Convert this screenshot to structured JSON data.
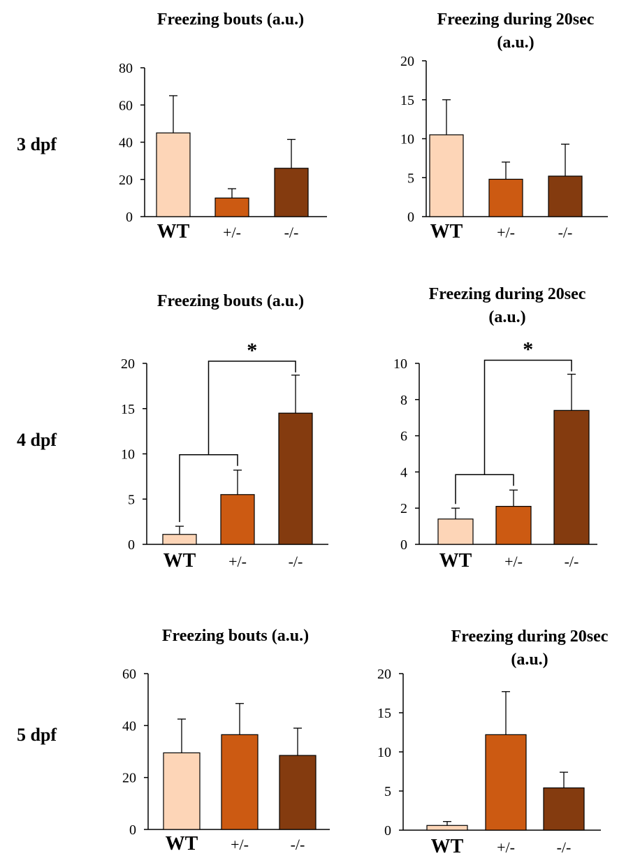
{
  "rows": [
    {
      "label": "3 dpf"
    },
    {
      "label": "4 dpf"
    },
    {
      "label": "5 dpf"
    }
  ],
  "colors": {
    "WT": "#FDD5B7",
    "het": "#CC5A12",
    "ko": "#843B0F",
    "axis": "#000000"
  },
  "chart_data": [
    {
      "type": "bar",
      "row": "3 dpf",
      "title_lines": [
        "Freezing bouts (a.u.)"
      ],
      "categories": [
        "WT",
        "+/-",
        "-/-"
      ],
      "values": [
        45,
        10,
        26
      ],
      "errors": [
        20,
        5,
        15.5
      ],
      "ylim": [
        0,
        80
      ],
      "yticks": [
        "0",
        "20",
        "40",
        "60",
        "80"
      ],
      "significance": []
    },
    {
      "type": "bar",
      "row": "3 dpf",
      "title_lines": [
        "Freezing during 20sec",
        "(a.u.)"
      ],
      "categories": [
        "WT",
        "+/-",
        "-/-"
      ],
      "values": [
        10.5,
        4.8,
        5.2
      ],
      "errors": [
        4.5,
        2.2,
        4.1
      ],
      "ylim": [
        0,
        20
      ],
      "yticks": [
        "0",
        "5",
        "10",
        "15",
        "20"
      ],
      "significance": []
    },
    {
      "type": "bar",
      "row": "4 dpf",
      "title_lines": [
        "Freezing bouts (a.u.)"
      ],
      "categories": [
        "WT",
        "+/-",
        "-/-"
      ],
      "values": [
        1.1,
        5.5,
        14.5
      ],
      "errors": [
        0.9,
        2.7,
        4.2
      ],
      "ylim": [
        0,
        20
      ],
      "yticks": [
        "0",
        "5",
        "10",
        "15",
        "20"
      ],
      "significance": [
        "*"
      ]
    },
    {
      "type": "bar",
      "row": "4 dpf",
      "title_lines": [
        "Freezing during 20sec",
        "(a.u.)"
      ],
      "categories": [
        "WT",
        "+/-",
        "-/-"
      ],
      "values": [
        1.4,
        2.1,
        7.4
      ],
      "errors": [
        0.6,
        0.9,
        2.0
      ],
      "ylim": [
        0,
        10
      ],
      "yticks": [
        "0",
        "2",
        "4",
        "6",
        "8",
        "10"
      ],
      "significance": [
        "*"
      ]
    },
    {
      "type": "bar",
      "row": "5 dpf",
      "title_lines": [
        "Freezing bouts (a.u.)"
      ],
      "categories": [
        "WT",
        "+/-",
        "-/-"
      ],
      "values": [
        29.5,
        36.5,
        28.5
      ],
      "errors": [
        13,
        12,
        10.5
      ],
      "ylim": [
        0,
        60
      ],
      "yticks": [
        "0",
        "20",
        "40",
        "60"
      ],
      "significance": []
    },
    {
      "type": "bar",
      "row": "5 dpf",
      "title_lines": [
        "Freezing during 20sec",
        "(a.u.)"
      ],
      "categories": [
        "WT",
        "+/-",
        "-/-"
      ],
      "values": [
        0.6,
        12.2,
        5.4
      ],
      "errors": [
        0.5,
        5.5,
        2.0
      ],
      "ylim": [
        0,
        20
      ],
      "yticks": [
        "0",
        "5",
        "10",
        "15",
        "20"
      ],
      "significance": []
    }
  ]
}
